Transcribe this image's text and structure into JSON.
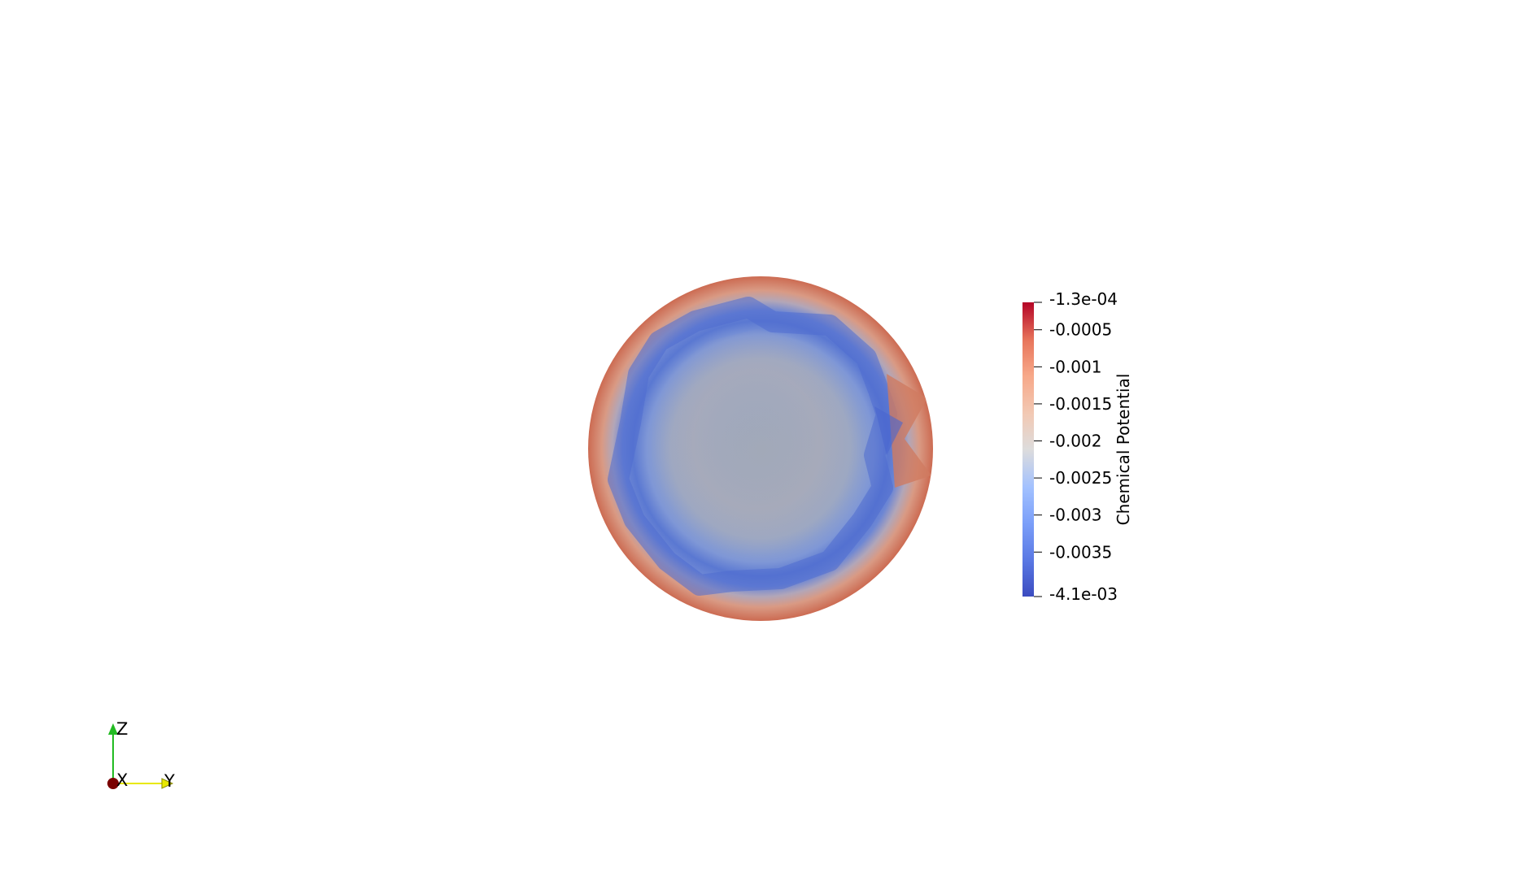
{
  "scene": {
    "object": "sphere",
    "background_color": "#ffffff",
    "colormap": "Cool to Warm"
  },
  "scalar_bar": {
    "title": "Chemical Potential",
    "range_max_label": "-1.3e-04",
    "range_min_label": "-4.1e-03",
    "range_max": -0.00013,
    "range_min": -0.0041,
    "ticks": [
      {
        "value": -0.0005,
        "label": "-0.0005"
      },
      {
        "value": -0.001,
        "label": "-0.001"
      },
      {
        "value": -0.0015,
        "label": "-0.0015"
      },
      {
        "value": -0.002,
        "label": "-0.002"
      },
      {
        "value": -0.0025,
        "label": "-0.0025"
      },
      {
        "value": -0.003,
        "label": "-0.003"
      },
      {
        "value": -0.0035,
        "label": "-0.0035"
      }
    ],
    "colors": {
      "max": "#b40426",
      "mid": "#dddddd",
      "min": "#3b4cc0"
    }
  },
  "orientation_axes": {
    "x_label": "X",
    "y_label": "Y",
    "z_label": "Z",
    "x_color": "#7a0000",
    "y_color": "#e8e800",
    "z_color": "#22bb22"
  }
}
